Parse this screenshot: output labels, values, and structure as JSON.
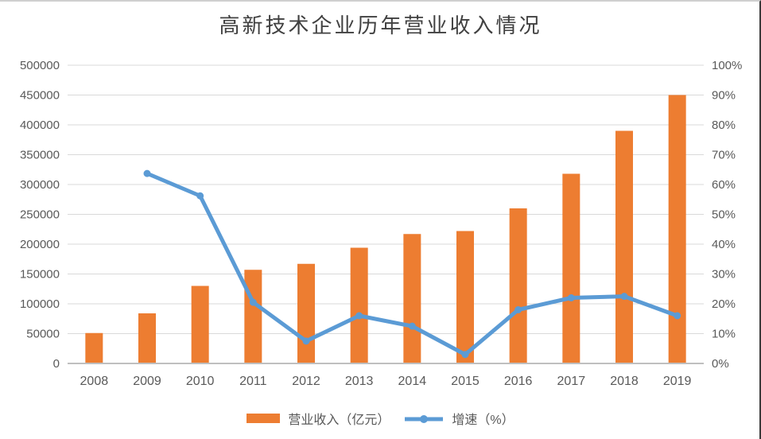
{
  "chart_data": {
    "type": "combo-bar-line",
    "title": "高新技术企业历年营业收入情况",
    "categories": [
      "2008",
      "2009",
      "2010",
      "2011",
      "2012",
      "2013",
      "2014",
      "2015",
      "2016",
      "2017",
      "2018",
      "2019"
    ],
    "series": [
      {
        "name": "营业收入（亿元）",
        "type": "bar",
        "axis": "left",
        "color": "#ED7D31",
        "values": [
          51000,
          84000,
          130000,
          157000,
          167000,
          194000,
          217000,
          222000,
          260000,
          318000,
          390000,
          450000
        ]
      },
      {
        "name": "增速（%）",
        "type": "line",
        "axis": "right",
        "color": "#5B9BD5",
        "values": [
          null,
          63.7,
          56.2,
          20.5,
          7.5,
          16,
          12.5,
          3,
          18,
          22,
          22.5,
          16
        ]
      }
    ],
    "left_axis": {
      "min": 0,
      "max": 500000,
      "step": 50000,
      "tick_labels": [
        "0",
        "50000",
        "100000",
        "150000",
        "200000",
        "250000",
        "300000",
        "350000",
        "400000",
        "450000",
        "500000"
      ]
    },
    "right_axis": {
      "min": 0,
      "max": 100,
      "step": 10,
      "unit": "%",
      "tick_labels": [
        "0%",
        "10%",
        "20%",
        "30%",
        "40%",
        "50%",
        "60%",
        "70%",
        "80%",
        "90%",
        "100%"
      ]
    },
    "grid": "horizontal-only",
    "legend_position": "bottom",
    "colors": {
      "gridline": "#D9D9D9",
      "axis_line": "#BFBFBF",
      "tick_text": "#595959",
      "title_text": "#404040"
    }
  }
}
